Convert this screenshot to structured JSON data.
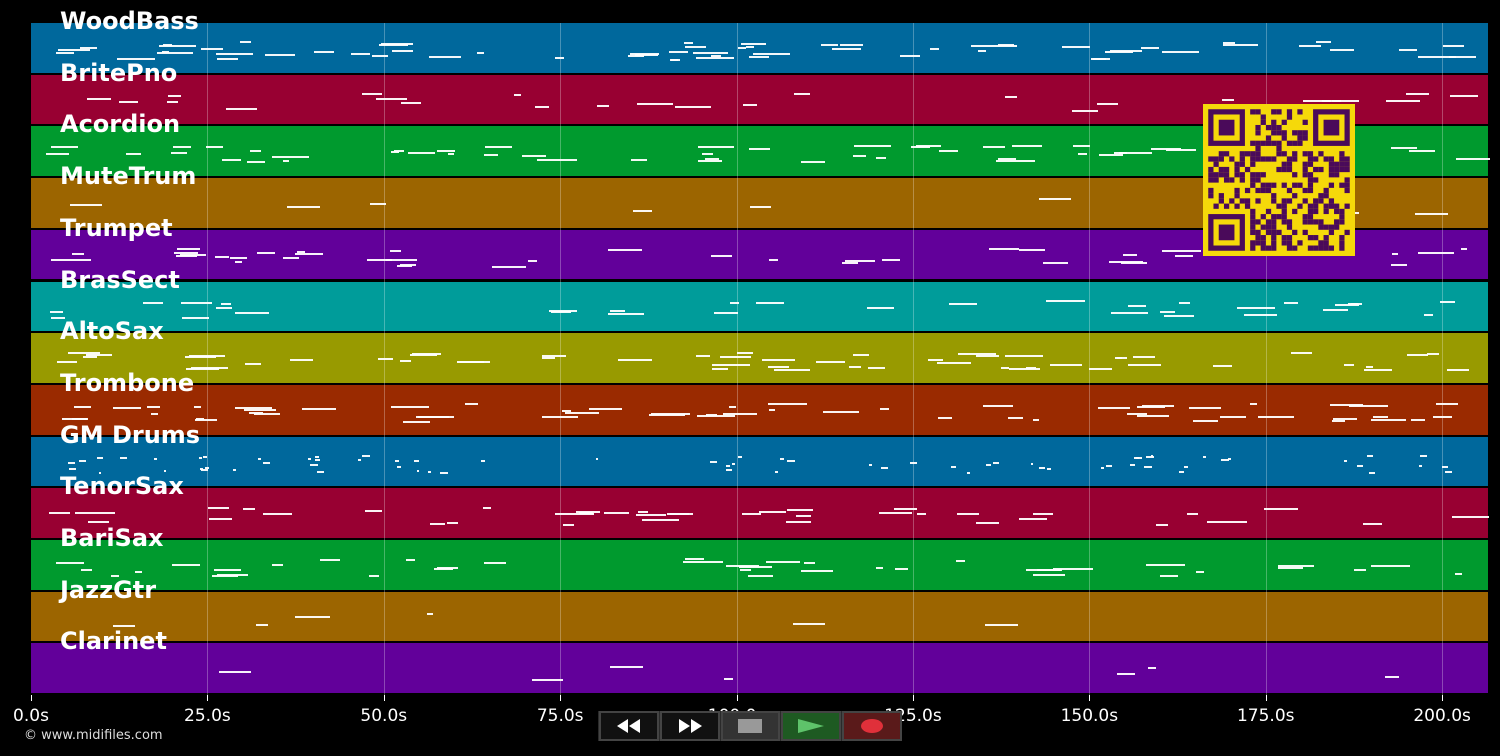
{
  "tracks": [
    {
      "name": "WoodBass",
      "color": "#00689c"
    },
    {
      "name": "BritePno",
      "color": "#980032"
    },
    {
      "name": "Acordion",
      "color": "#009a2e"
    },
    {
      "name": "MuteTrum",
      "color": "#9c6500"
    },
    {
      "name": "Trumpet",
      "color": "#62009a"
    },
    {
      "name": "BrasSect",
      "color": "#009c9a"
    },
    {
      "name": "AltoSax",
      "color": "#989a00"
    },
    {
      "name": "Trombone",
      "color": "#9a2a00"
    },
    {
      "name": "GM Drums",
      "color": "#00689c"
    },
    {
      "name": "TenorSax",
      "color": "#980032"
    },
    {
      "name": "BariSax",
      "color": "#009a2e"
    },
    {
      "name": "JazzGtr",
      "color": "#9c6500"
    },
    {
      "name": "Clarinet",
      "color": "#62009a"
    }
  ],
  "time_axis": {
    "ticks": [
      "0.0s",
      "25.0s",
      "50.0s",
      "75.0s",
      "100.0s",
      "125.0s",
      "150.0s",
      "175.0s",
      "200.0s"
    ],
    "tick_values": [
      0,
      25,
      50,
      75,
      100,
      125,
      150,
      175,
      200
    ],
    "max_seconds": 206.5
  },
  "copyright": "© www.midifiles.com",
  "controls": {
    "rewind": "rewind-icon",
    "fast_forward": "fast-forward-icon",
    "stop": "stop-icon",
    "play": "play-icon",
    "record": "record-icon"
  },
  "colors": {
    "qr_background": "#f5d90a",
    "qr_foreground": "#4a0a5a",
    "play": "#5ec36a",
    "record": "#e0303a"
  }
}
